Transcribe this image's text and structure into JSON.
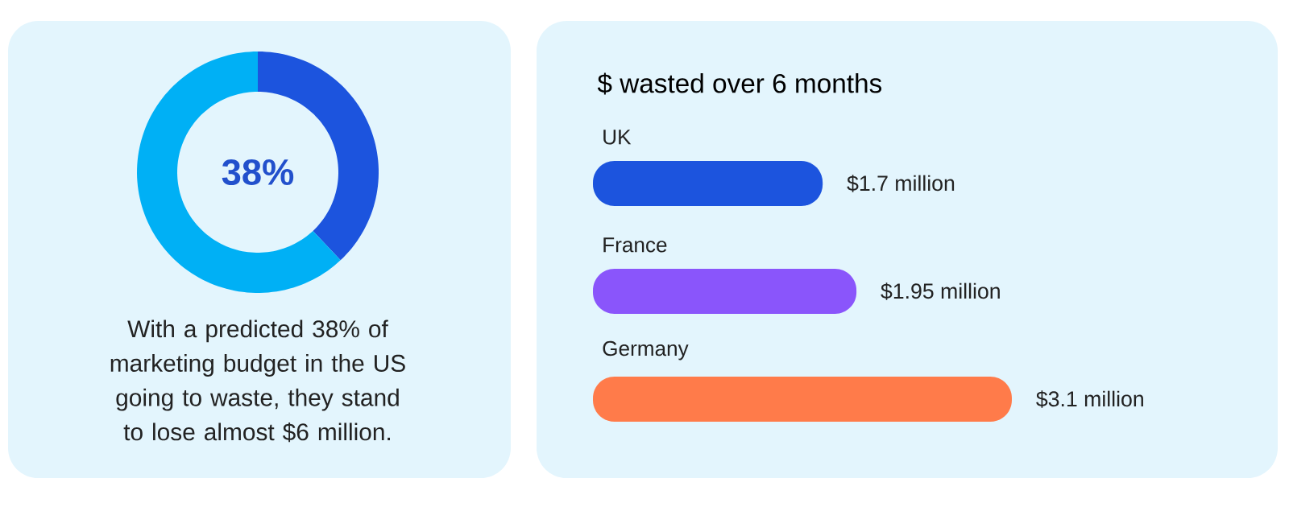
{
  "chart_data": [
    {
      "type": "donut",
      "categories": [
        null,
        null
      ],
      "values": [
        38,
        62
      ],
      "colors": [
        "#1c54de",
        "#00b0f5"
      ],
      "annotations": [
        "38%",
        "With a predicted 38% of marketing budget in the US going to waste, they stand to lose almost $6 million."
      ]
    },
    {
      "type": "bar",
      "orientation": "horizontal",
      "title": "$ wasted over 6 months",
      "categories": [
        "UK",
        "France",
        "Germany"
      ],
      "values": [
        1.7,
        1.95,
        3.1
      ],
      "colors": [
        "#1c54de",
        "#8a55fb",
        "#ff7b4a"
      ],
      "value_labels": [
        "$1.7 million",
        "$1.95 million",
        "$3.1 million"
      ]
    }
  ]
}
